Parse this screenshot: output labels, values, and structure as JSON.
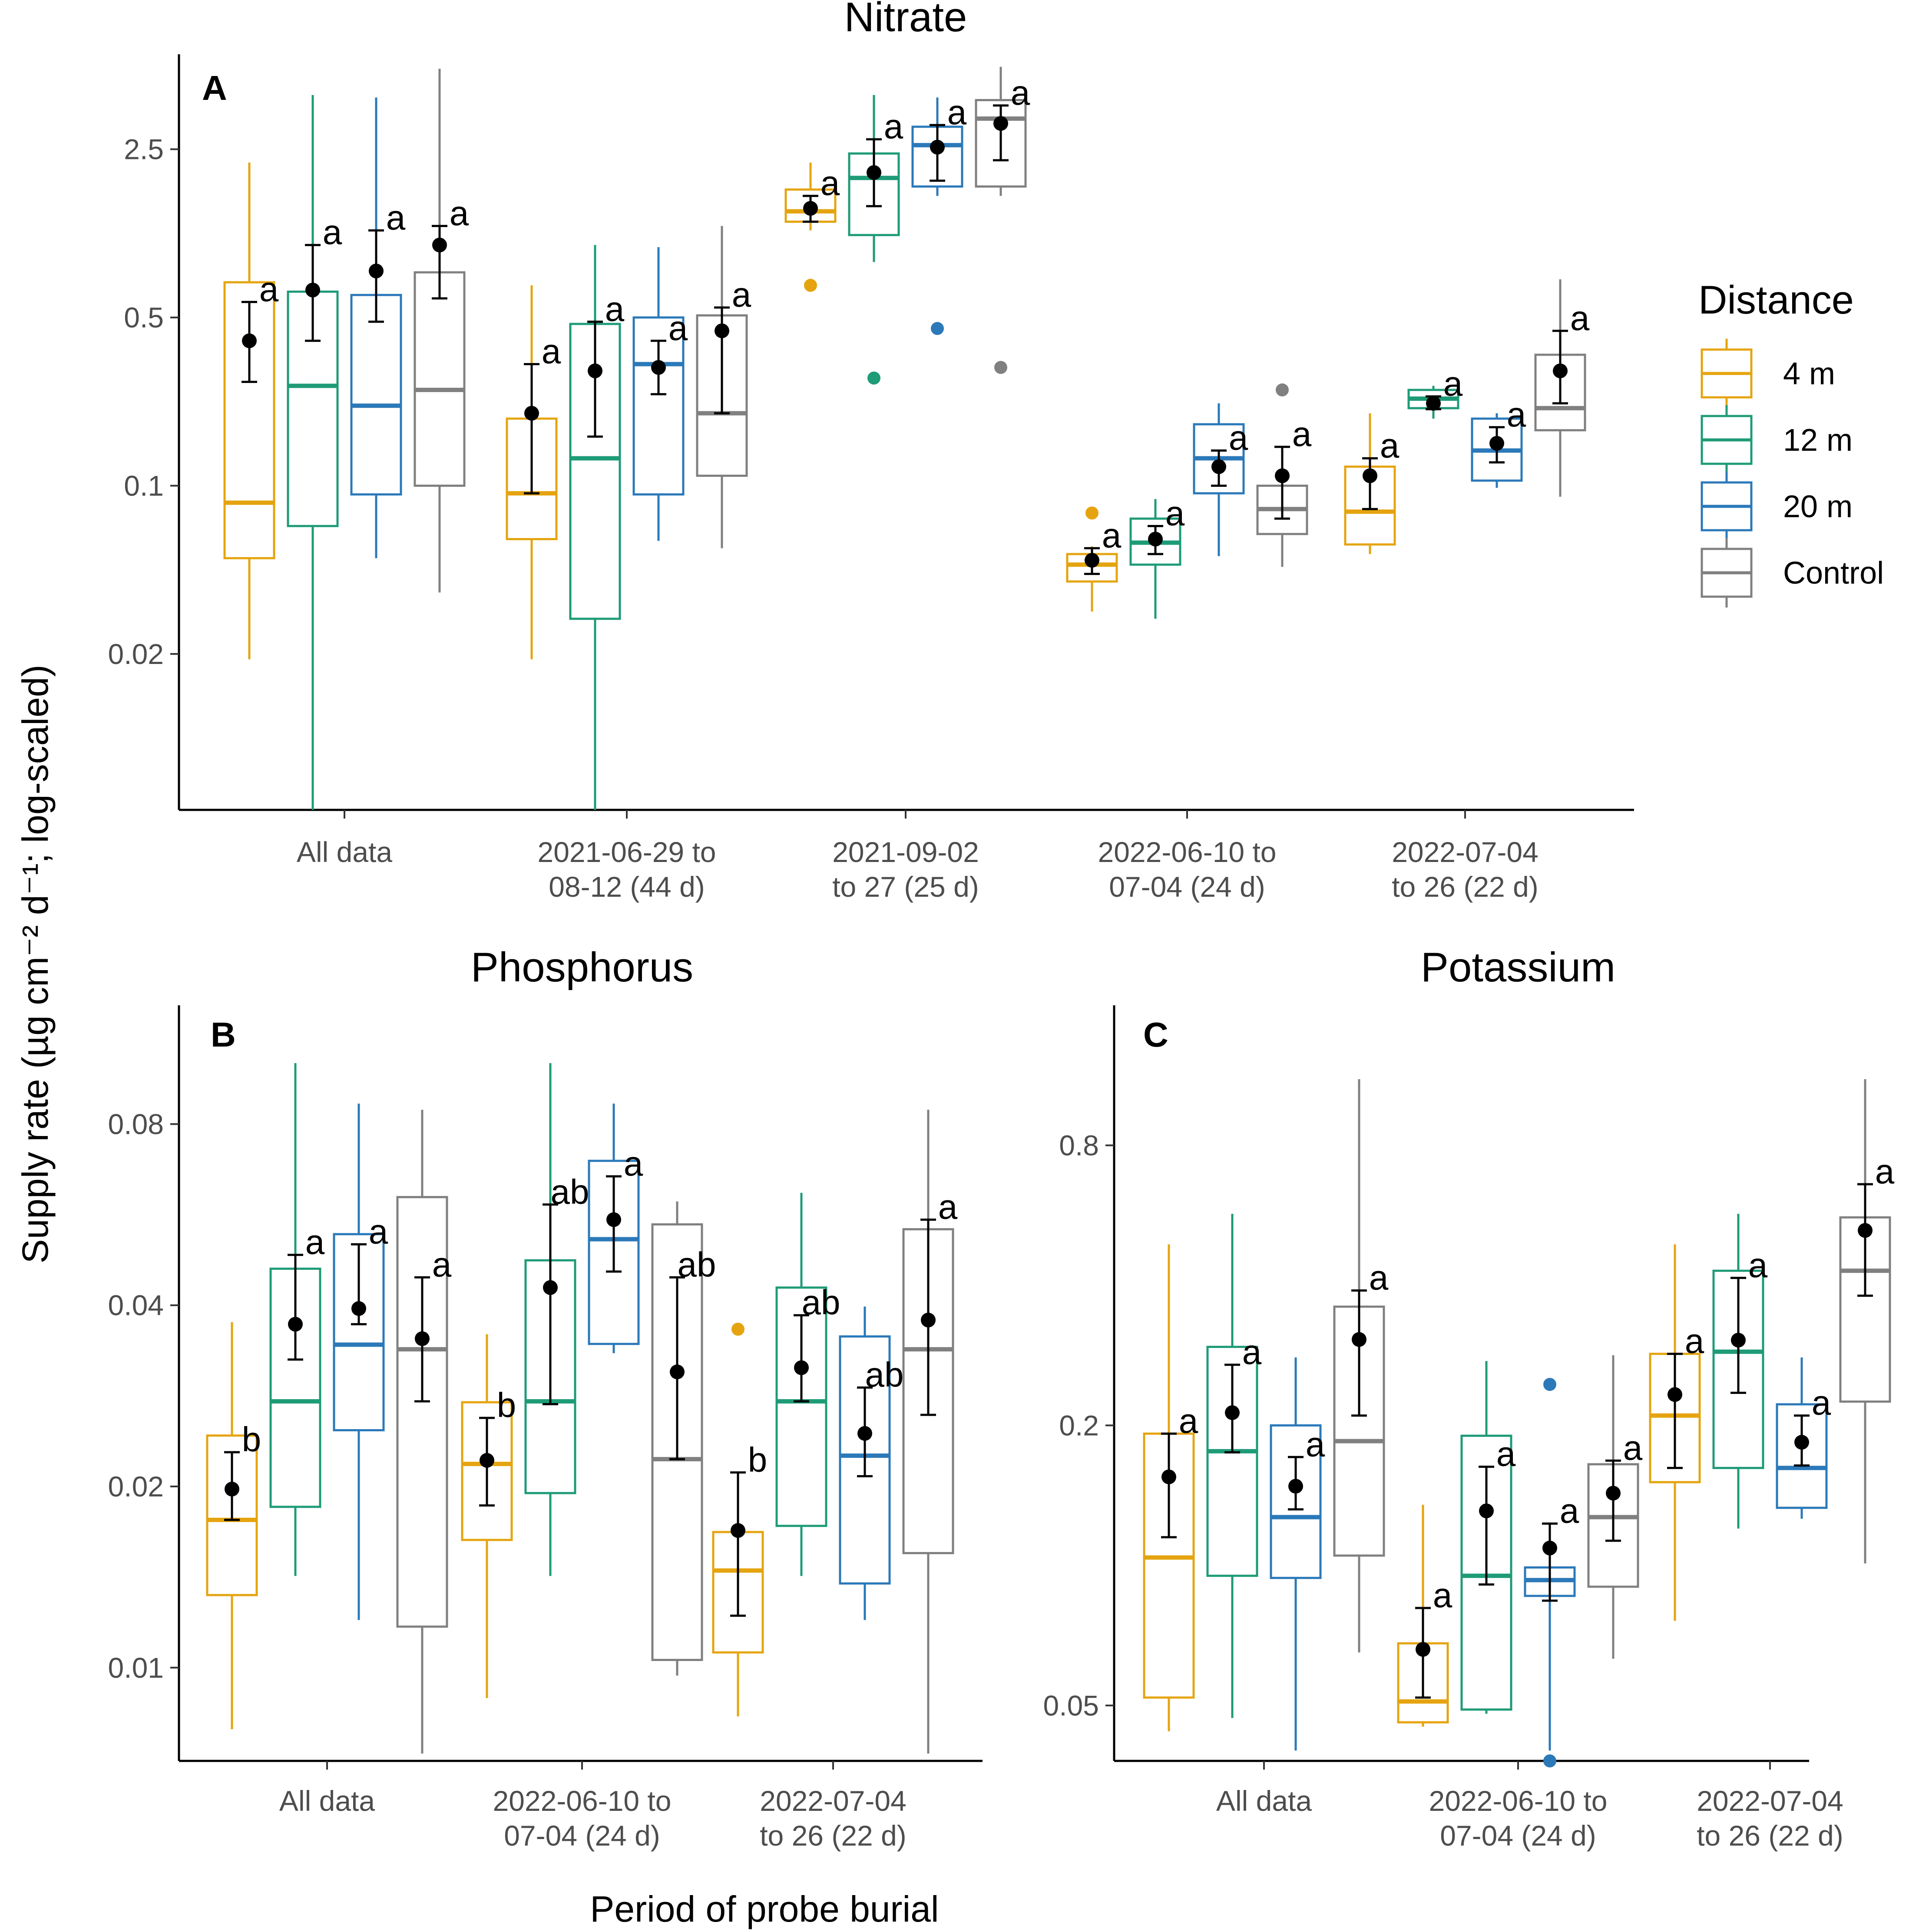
{
  "colors": {
    "4 m": "#E5A40F",
    "12 m": "#1E9B77",
    "20 m": "#2B79B9",
    "Control": "#808080",
    "mean": "#000000"
  },
  "y_axis_label": "Supply rate (µg cm⁻² d⁻¹; log-scaled)",
  "x_axis_label": "Period of probe burial",
  "legend": {
    "title": "Distance",
    "entries": [
      "4 m",
      "12 m",
      "20 m",
      "Control"
    ]
  },
  "chart_data": [
    {
      "id": "A",
      "type": "box",
      "title": "Nitrate",
      "tag": "A",
      "y_scale": "log",
      "ylim": [
        0.0045,
        6.2
      ],
      "yticks": [
        "0.02",
        "0.1",
        "0.5",
        "2.5"
      ],
      "series_order": [
        "4 m",
        "12 m",
        "20 m",
        "Control"
      ],
      "groups": [
        {
          "label": [
            "All data"
          ],
          "boxes": [
            {
              "series": "4 m",
              "wmin": 0.019,
              "q1": 0.05,
              "median": 0.085,
              "q3": 0.7,
              "wmax": 2.2,
              "mean": 0.4,
              "err": [
                0.27,
                0.58
              ],
              "letter": "a"
            },
            {
              "series": "12 m",
              "wmin": 0.0045,
              "q1": 0.068,
              "median": 0.26,
              "q3": 0.64,
              "wmax": 4.2,
              "mean": 0.65,
              "err": [
                0.4,
                1.0
              ],
              "letter": "a"
            },
            {
              "series": "20 m",
              "wmin": 0.05,
              "q1": 0.092,
              "median": 0.215,
              "q3": 0.62,
              "wmax": 4.1,
              "mean": 0.78,
              "err": [
                0.48,
                1.15
              ],
              "letter": "a"
            },
            {
              "series": "Control",
              "wmin": 0.036,
              "q1": 0.1,
              "median": 0.25,
              "q3": 0.77,
              "wmax": 5.4,
              "mean": 1.0,
              "err": [
                0.6,
                1.2
              ],
              "letter": "a"
            }
          ]
        },
        {
          "label": [
            "2021-06-29 to",
            "08-12 (44 d)"
          ],
          "boxes": [
            {
              "series": "4 m",
              "wmin": 0.019,
              "q1": 0.06,
              "median": 0.093,
              "q3": 0.19,
              "wmax": 0.68,
              "mean": 0.2,
              "err": [
                0.093,
                0.32
              ],
              "letter": "a"
            },
            {
              "series": "12 m",
              "wmin": 0.0045,
              "q1": 0.028,
              "median": 0.13,
              "q3": 0.47,
              "wmax": 1.0,
              "mean": 0.3,
              "err": [
                0.16,
                0.48
              ],
              "letter": "a"
            },
            {
              "series": "20 m",
              "wmin": 0.059,
              "q1": 0.092,
              "median": 0.32,
              "q3": 0.5,
              "wmax": 0.98,
              "mean": 0.31,
              "err": [
                0.24,
                0.4
              ],
              "letter": "a"
            },
            {
              "series": "Control",
              "wmin": 0.055,
              "q1": 0.11,
              "median": 0.2,
              "q3": 0.51,
              "wmax": 1.2,
              "mean": 0.44,
              "err": [
                0.2,
                0.55
              ],
              "letter": "a"
            }
          ]
        },
        {
          "label": [
            "2021-09-02",
            "to 27 (25 d)"
          ],
          "boxes": [
            {
              "series": "4 m",
              "wmin": 1.15,
              "q1": 1.25,
              "median": 1.38,
              "q3": 1.7,
              "wmax": 2.2,
              "mean": 1.42,
              "err": [
                1.25,
                1.6
              ],
              "letter": "a",
              "outliers": [
                0.68
              ]
            },
            {
              "series": "12 m",
              "wmin": 0.85,
              "q1": 1.1,
              "median": 1.9,
              "q3": 2.4,
              "wmax": 4.2,
              "mean": 2.0,
              "err": [
                1.45,
                2.75
              ],
              "letter": "a",
              "outliers": [
                0.28
              ]
            },
            {
              "series": "20 m",
              "wmin": 1.6,
              "q1": 1.75,
              "median": 2.6,
              "q3": 3.1,
              "wmax": 4.1,
              "mean": 2.55,
              "err": [
                1.85,
                3.15
              ],
              "letter": "a",
              "outliers": [
                0.45
              ]
            },
            {
              "series": "Control",
              "wmin": 1.6,
              "q1": 1.75,
              "median": 3.35,
              "q3": 4.0,
              "wmax": 5.5,
              "mean": 3.2,
              "err": [
                2.25,
                3.8
              ],
              "letter": "a",
              "outliers": [
                0.31
              ]
            }
          ]
        },
        {
          "label": [
            "2022-06-10 to",
            "07-04 (24 d)"
          ],
          "boxes": [
            {
              "series": "4 m",
              "wmin": 0.03,
              "q1": 0.04,
              "median": 0.047,
              "q3": 0.052,
              "wmax": 0.056,
              "mean": 0.049,
              "err": [
                0.043,
                0.055
              ],
              "letter": "a",
              "outliers": [
                0.077
              ]
            },
            {
              "series": "12 m",
              "wmin": 0.028,
              "q1": 0.047,
              "median": 0.058,
              "q3": 0.073,
              "wmax": 0.088,
              "mean": 0.06,
              "err": [
                0.052,
                0.068
              ],
              "letter": "a"
            },
            {
              "series": "20 m",
              "wmin": 0.051,
              "q1": 0.093,
              "median": 0.13,
              "q3": 0.18,
              "wmax": 0.22,
              "mean": 0.12,
              "err": [
                0.1,
                0.14
              ],
              "letter": "a"
            },
            {
              "series": "Control",
              "wmin": 0.046,
              "q1": 0.063,
              "median": 0.08,
              "q3": 0.1,
              "wmax": 0.14,
              "mean": 0.11,
              "err": [
                0.073,
                0.145
              ],
              "letter": "a",
              "outliers": [
                0.25
              ]
            }
          ]
        },
        {
          "label": [
            "2022-07-04",
            "to 26 (22 d)"
          ],
          "boxes": [
            {
              "series": "4 m",
              "wmin": 0.052,
              "q1": 0.057,
              "median": 0.078,
              "q3": 0.12,
              "wmax": 0.2,
              "mean": 0.11,
              "err": [
                0.08,
                0.13
              ],
              "letter": "a"
            },
            {
              "series": "12 m",
              "wmin": 0.19,
              "q1": 0.21,
              "median": 0.23,
              "q3": 0.25,
              "wmax": 0.26,
              "mean": 0.22,
              "err": [
                0.208,
                0.235
              ],
              "letter": "a"
            },
            {
              "series": "20 m",
              "wmin": 0.098,
              "q1": 0.105,
              "median": 0.14,
              "q3": 0.19,
              "wmax": 0.2,
              "mean": 0.15,
              "err": [
                0.125,
                0.175
              ],
              "letter": "a"
            },
            {
              "series": "Control",
              "wmin": 0.09,
              "q1": 0.17,
              "median": 0.21,
              "q3": 0.35,
              "wmax": 0.72,
              "mean": 0.3,
              "err": [
                0.22,
                0.44
              ],
              "letter": "a"
            }
          ]
        }
      ]
    },
    {
      "id": "B",
      "type": "box",
      "title": "Phosphorus",
      "tag": "B",
      "y_scale": "log",
      "ylim": [
        0.007,
        0.126
      ],
      "yticks": [
        "0.01",
        "0.02",
        "0.04",
        "0.08"
      ],
      "series_order": [
        "4 m",
        "12 m",
        "20 m",
        "Control"
      ],
      "groups": [
        {
          "label": [
            "All data"
          ],
          "boxes": [
            {
              "series": "4 m",
              "wmin": 0.0079,
              "q1": 0.0132,
              "median": 0.0176,
              "q3": 0.0243,
              "wmax": 0.0375,
              "mean": 0.0198,
              "err": [
                0.0176,
                0.0228
              ],
              "letter": "b"
            },
            {
              "series": "12 m",
              "wmin": 0.0142,
              "q1": 0.0185,
              "median": 0.0277,
              "q3": 0.046,
              "wmax": 0.101,
              "mean": 0.0372,
              "err": [
                0.0325,
                0.0485
              ],
              "letter": "a"
            },
            {
              "series": "20 m",
              "wmin": 0.012,
              "q1": 0.0248,
              "median": 0.0344,
              "q3": 0.0525,
              "wmax": 0.0865,
              "mean": 0.0395,
              "err": [
                0.0372,
                0.0505
              ],
              "letter": "a"
            },
            {
              "series": "Control",
              "wmin": 0.0072,
              "q1": 0.0117,
              "median": 0.0338,
              "q3": 0.0605,
              "wmax": 0.0845,
              "mean": 0.0352,
              "err": [
                0.0277,
                0.0445
              ],
              "letter": "a"
            }
          ]
        },
        {
          "label": [
            "2022-06-10 to",
            "07-04 (24 d)"
          ],
          "boxes": [
            {
              "series": "4 m",
              "wmin": 0.0089,
              "q1": 0.0163,
              "median": 0.0218,
              "q3": 0.0276,
              "wmax": 0.0358,
              "mean": 0.0221,
              "err": [
                0.0186,
                0.026
              ],
              "letter": "b"
            },
            {
              "series": "12 m",
              "wmin": 0.0142,
              "q1": 0.0195,
              "median": 0.0277,
              "q3": 0.0475,
              "wmax": 0.101,
              "mean": 0.0428,
              "err": [
                0.0274,
                0.0588
              ],
              "letter": "ab"
            },
            {
              "series": "20 m",
              "wmin": 0.0333,
              "q1": 0.0345,
              "median": 0.0515,
              "q3": 0.0695,
              "wmax": 0.0865,
              "mean": 0.0555,
              "err": [
                0.0455,
                0.0655
              ],
              "letter": "a"
            },
            {
              "series": "Control",
              "wmin": 0.0097,
              "q1": 0.0103,
              "median": 0.0222,
              "q3": 0.0545,
              "wmax": 0.0595,
              "mean": 0.031,
              "err": [
                0.0222,
                0.0445
              ],
              "letter": "ab"
            }
          ]
        },
        {
          "label": [
            "2022-07-04",
            "to 26 (22 d)"
          ],
          "boxes": [
            {
              "series": "4 m",
              "wmin": 0.0083,
              "q1": 0.0106,
              "median": 0.0145,
              "q3": 0.0168,
              "wmax": 0.0211,
              "mean": 0.0169,
              "err": [
                0.0122,
                0.0211
              ],
              "letter": "b",
              "outliers": [
                0.0365
              ]
            },
            {
              "series": "12 m",
              "wmin": 0.0142,
              "q1": 0.0172,
              "median": 0.0277,
              "q3": 0.0428,
              "wmax": 0.0615,
              "mean": 0.0315,
              "err": [
                0.0277,
                0.0385
              ],
              "letter": "ab"
            },
            {
              "series": "20 m",
              "wmin": 0.012,
              "q1": 0.0138,
              "median": 0.0225,
              "q3": 0.0355,
              "wmax": 0.0398,
              "mean": 0.0245,
              "err": [
                0.0208,
                0.0292
              ],
              "letter": "ab"
            },
            {
              "series": "Control",
              "wmin": 0.0072,
              "q1": 0.0155,
              "median": 0.0338,
              "q3": 0.0535,
              "wmax": 0.0845,
              "mean": 0.0378,
              "err": [
                0.0263,
                0.0555
              ],
              "letter": "a"
            }
          ]
        }
      ]
    },
    {
      "id": "C",
      "type": "box",
      "title": "Potassium",
      "tag": "C",
      "y_scale": "log",
      "ylim": [
        0.038,
        1.6
      ],
      "yticks": [
        "0.05",
        "0.2",
        "0.8"
      ],
      "series_order": [
        "4 m",
        "12 m",
        "20 m",
        "Control"
      ],
      "groups": [
        {
          "label": [
            "All data"
          ],
          "boxes": [
            {
              "series": "4 m",
              "wmin": 0.044,
              "q1": 0.052,
              "median": 0.104,
              "q3": 0.192,
              "wmax": 0.49,
              "mean": 0.155,
              "err": [
                0.115,
                0.192
              ],
              "letter": "a"
            },
            {
              "series": "12 m",
              "wmin": 0.047,
              "q1": 0.095,
              "median": 0.176,
              "q3": 0.295,
              "wmax": 0.57,
              "mean": 0.213,
              "err": [
                0.175,
                0.27
              ],
              "letter": "a"
            },
            {
              "series": "20 m",
              "wmin": 0.04,
              "q1": 0.094,
              "median": 0.127,
              "q3": 0.2,
              "wmax": 0.28,
              "mean": 0.148,
              "err": [
                0.132,
                0.171
              ],
              "letter": "a"
            },
            {
              "series": "Control",
              "wmin": 0.065,
              "q1": 0.105,
              "median": 0.185,
              "q3": 0.36,
              "wmax": 1.11,
              "mean": 0.306,
              "err": [
                0.21,
                0.39
              ],
              "letter": "a"
            }
          ]
        },
        {
          "label": [
            "2022-06-10 to",
            "07-04 (24 d)"
          ],
          "boxes": [
            {
              "series": "4 m",
              "wmin": 0.045,
              "q1": 0.046,
              "median": 0.051,
              "q3": 0.068,
              "wmax": 0.135,
              "mean": 0.066,
              "err": [
                0.052,
                0.081
              ],
              "letter": "a"
            },
            {
              "series": "12 m",
              "wmin": 0.048,
              "q1": 0.049,
              "median": 0.095,
              "q3": 0.19,
              "wmax": 0.275,
              "mean": 0.131,
              "err": [
                0.091,
                0.163
              ],
              "letter": "a"
            },
            {
              "series": "20 m",
              "wmin": 0.04,
              "q1": 0.086,
              "median": 0.093,
              "q3": 0.099,
              "wmax": 0.123,
              "mean": 0.109,
              "err": [
                0.084,
                0.123
              ],
              "letter": "a",
              "outliers": [
                0.245,
                0.038
              ]
            },
            {
              "series": "Control",
              "wmin": 0.063,
              "q1": 0.09,
              "median": 0.127,
              "q3": 0.165,
              "wmax": 0.283,
              "mean": 0.143,
              "err": [
                0.113,
                0.168
              ],
              "letter": "a"
            }
          ]
        },
        {
          "label": [
            "2022-07-04",
            "to 26 (22 d)"
          ],
          "boxes": [
            {
              "series": "4 m",
              "wmin": 0.076,
              "q1": 0.151,
              "median": 0.21,
              "q3": 0.285,
              "wmax": 0.49,
              "mean": 0.233,
              "err": [
                0.162,
                0.285
              ],
              "letter": "a"
            },
            {
              "series": "12 m",
              "wmin": 0.12,
              "q1": 0.162,
              "median": 0.288,
              "q3": 0.43,
              "wmax": 0.57,
              "mean": 0.305,
              "err": [
                0.235,
                0.415
              ],
              "letter": "a"
            },
            {
              "series": "20 m",
              "wmin": 0.126,
              "q1": 0.133,
              "median": 0.162,
              "q3": 0.222,
              "wmax": 0.28,
              "mean": 0.184,
              "err": [
                0.164,
                0.21
              ],
              "letter": "a"
            },
            {
              "series": "Control",
              "wmin": 0.101,
              "q1": 0.225,
              "median": 0.43,
              "q3": 0.56,
              "wmax": 1.11,
              "mean": 0.525,
              "err": [
                0.38,
                0.66
              ],
              "letter": "a"
            }
          ]
        }
      ]
    }
  ]
}
